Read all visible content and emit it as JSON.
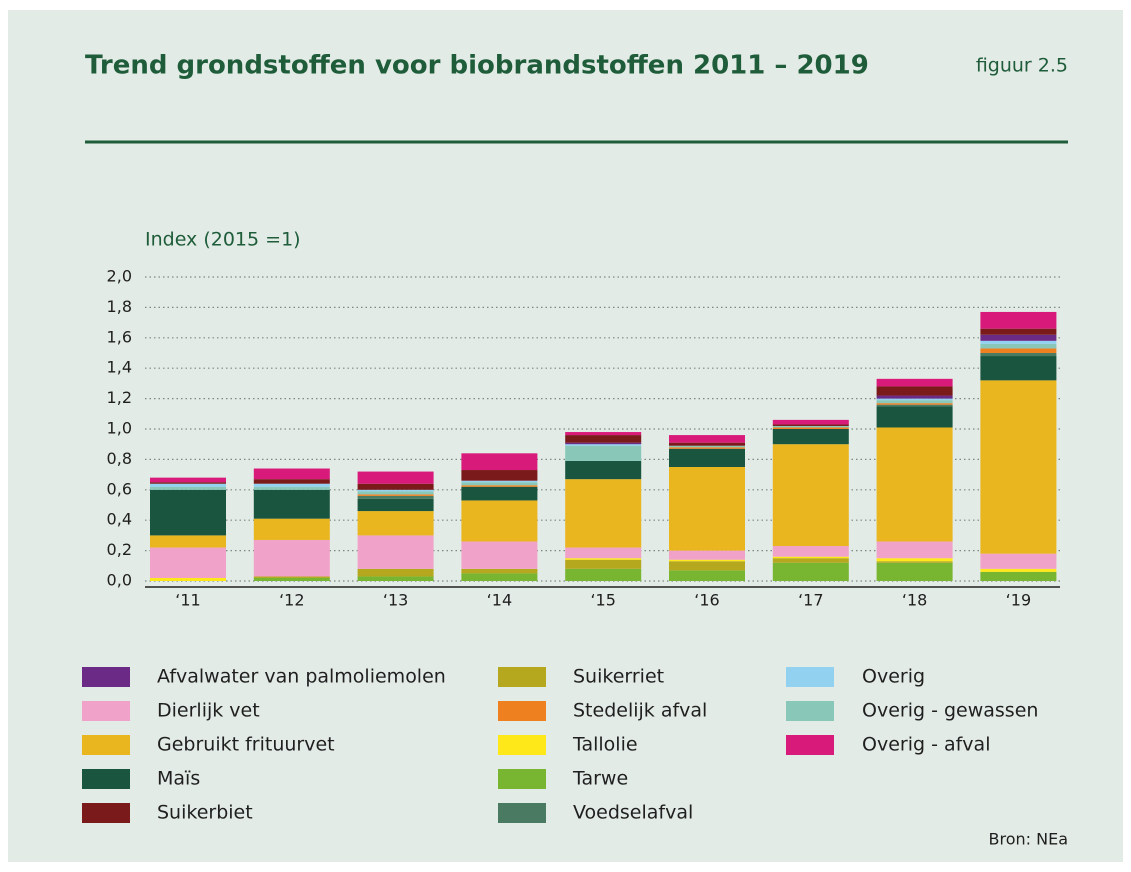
{
  "chart_data": {
    "type": "stacked_bar",
    "title": "Trend grondstoffen voor biobrandstoffen 2011 – 2019",
    "figure_label": "figuur 2.5",
    "y_label": "Index (2015 =1)",
    "source": "Bron: NEa",
    "categories": [
      "‘11",
      "‘12",
      "‘13",
      "‘14",
      "‘15",
      "‘16",
      "‘17",
      "‘18",
      "‘19"
    ],
    "ylim": [
      0,
      2
    ],
    "yticks": [
      {
        "value": 0,
        "label": "0,0"
      },
      {
        "value": 0.2,
        "label": "0,2"
      },
      {
        "value": 0.4,
        "label": "0,4"
      },
      {
        "value": 0.6,
        "label": "0,6"
      },
      {
        "value": 0.8,
        "label": "0,8"
      },
      {
        "value": 1,
        "label": "1,0"
      },
      {
        "value": 1.2,
        "label": "1,2"
      },
      {
        "value": 1.4,
        "label": "1,4"
      },
      {
        "value": 1.6,
        "label": "1,6"
      },
      {
        "value": 1.8,
        "label": "1,8"
      },
      {
        "value": 2,
        "label": "2,0"
      }
    ],
    "grid": true,
    "series": [
      {
        "name": "Afvalwater van palmoliemolen",
        "color": "#6b2a85",
        "values": [
          0,
          0,
          0,
          0,
          0.01,
          0,
          0,
          0.02,
          0.04
        ]
      },
      {
        "name": "Dierlijk vet",
        "color": "#f1a2c9",
        "values": [
          0.2,
          0.24,
          0.22,
          0.18,
          0.07,
          0.06,
          0.07,
          0.11,
          0.1
        ]
      },
      {
        "name": "Gebruikt frituurvet",
        "color": "#e9b61f",
        "values": [
          0.08,
          0.14,
          0.16,
          0.27,
          0.45,
          0.55,
          0.67,
          0.75,
          1.14
        ]
      },
      {
        "name": "Maïs",
        "color": "#1a5540",
        "values": [
          0.3,
          0.19,
          0.08,
          0.09,
          0.12,
          0.12,
          0.1,
          0.14,
          0.16
        ]
      },
      {
        "name": "Suikerbiet",
        "color": "#7a1a1a",
        "values": [
          0.01,
          0.03,
          0.04,
          0.07,
          0.05,
          0.02,
          0.01,
          0.06,
          0.04
        ]
      },
      {
        "name": "Suikerriet",
        "color": "#b5a81f",
        "values": [
          0,
          0.01,
          0.05,
          0.03,
          0.06,
          0.06,
          0.03,
          0.01,
          0
        ]
      },
      {
        "name": "Stedelijk afval",
        "color": "#ee8020",
        "values": [
          0,
          0,
          0.01,
          0.01,
          0,
          0.01,
          0.01,
          0.01,
          0.03
        ]
      },
      {
        "name": "Tallolie",
        "color": "#ffe819",
        "values": [
          0.02,
          0,
          0,
          0,
          0.01,
          0.01,
          0.01,
          0.02,
          0.02
        ]
      },
      {
        "name": "Tarwe",
        "color": "#78b530",
        "values": [
          0,
          0.02,
          0.03,
          0.05,
          0.08,
          0.07,
          0.12,
          0.12,
          0.06
        ]
      },
      {
        "name": "Voedselafval",
        "color": "#4a7a62",
        "values": [
          0,
          0,
          0.02,
          0,
          0,
          0,
          0,
          0.01,
          0.02
        ]
      },
      {
        "name": "Overig",
        "color": "#92d1f0",
        "values": [
          0.02,
          0.02,
          0.01,
          0.01,
          0.01,
          0,
          0,
          0.01,
          0.02
        ]
      },
      {
        "name": "Overig - gewassen",
        "color": "#89c8b9",
        "values": [
          0.02,
          0.02,
          0.02,
          0.02,
          0.1,
          0.01,
          0.01,
          0.02,
          0.03
        ]
      },
      {
        "name": "Overig - afval",
        "color": "#d81b7a",
        "values": [
          0.03,
          0.07,
          0.08,
          0.11,
          0.02,
          0.05,
          0.03,
          0.05,
          0.11
        ]
      }
    ]
  }
}
